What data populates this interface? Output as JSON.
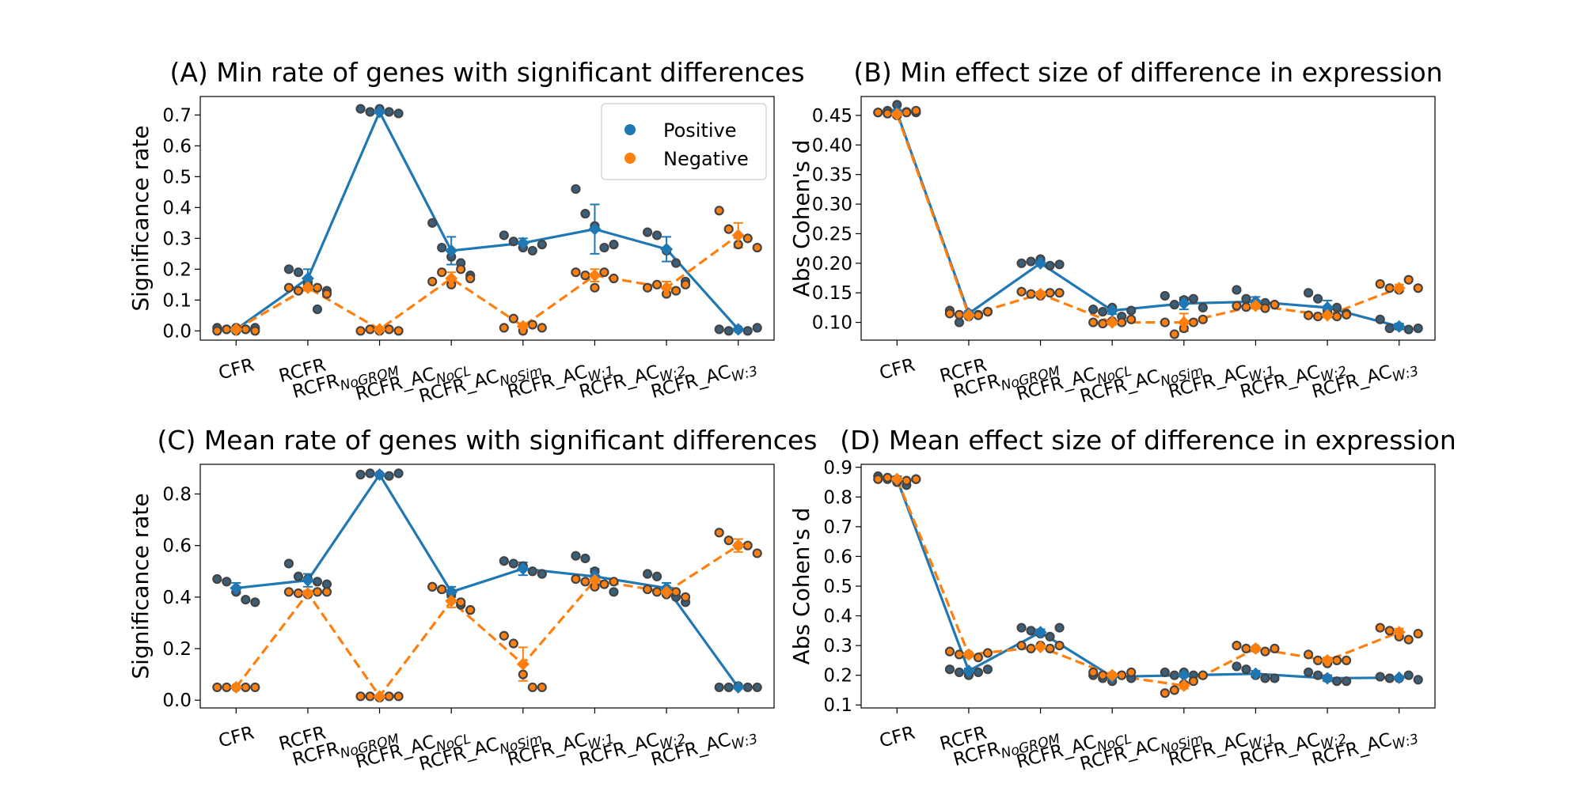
{
  "colors": {
    "positive": "#1f77b4",
    "negative": "#ff7f0e",
    "dot_fill": "#3a5f7a",
    "dot_edge": "#444444"
  },
  "chart_data": [
    {
      "type": "line",
      "title": "(A) Min rate of genes with significant differences",
      "ylabel": "Significance rate",
      "ylim": [
        -0.03,
        0.76
      ],
      "yticks": [
        0.0,
        0.1,
        0.2,
        0.3,
        0.4,
        0.5,
        0.6,
        0.7
      ],
      "tick_decimals": 1,
      "legend": {
        "placement": "top-right",
        "entries": [
          "Positive",
          "Negative"
        ]
      },
      "categories": [
        {
          "base": "CFR",
          "sub": ""
        },
        {
          "base": "RCFR",
          "sub": ""
        },
        {
          "base": "RCFR",
          "sub": "NoGROM"
        },
        {
          "base": "RCFR_AC",
          "sub": "NoCL"
        },
        {
          "base": "RCFR_AC",
          "sub": "NoSim"
        },
        {
          "base": "RCFR_AC",
          "sub": "W:1"
        },
        {
          "base": "RCFR_AC",
          "sub": "W:2"
        },
        {
          "base": "RCFR_AC",
          "sub": "W:3"
        }
      ],
      "series": [
        {
          "name": "Positive",
          "values": [
            0.005,
            0.17,
            0.71,
            0.26,
            0.285,
            0.33,
            0.265,
            0.005
          ],
          "err": [
            0.003,
            0.03,
            0.005,
            0.045,
            0.015,
            0.08,
            0.04,
            0.003
          ],
          "points": [
            [
              0.01,
              0.005,
              0.0,
              0.005,
              0.01
            ],
            [
              0.2,
              0.19,
              0.16,
              0.07,
              0.13
            ],
            [
              0.72,
              0.71,
              0.72,
              0.71,
              0.705
            ],
            [
              0.35,
              0.27,
              0.24,
              0.22,
              0.18
            ],
            [
              0.31,
              0.29,
              0.27,
              0.26,
              0.28
            ],
            [
              0.46,
              0.38,
              0.34,
              0.27,
              0.28
            ],
            [
              0.32,
              0.31,
              0.26,
              0.22,
              0.16
            ],
            [
              0.005,
              0.0,
              0.005,
              0.0,
              0.01
            ]
          ]
        },
        {
          "name": "Negative",
          "values": [
            0.005,
            0.14,
            0.005,
            0.17,
            0.015,
            0.18,
            0.14,
            0.31
          ],
          "err": [
            0.003,
            0.01,
            0.003,
            0.02,
            0.01,
            0.02,
            0.02,
            0.04
          ],
          "points": [
            [
              0.0,
              0.005,
              0.01,
              0.005,
              0.0
            ],
            [
              0.14,
              0.13,
              0.15,
              0.14,
              0.12
            ],
            [
              0.0,
              0.005,
              0.0,
              0.005,
              0.0
            ],
            [
              0.16,
              0.19,
              0.15,
              0.2,
              0.17
            ],
            [
              0.01,
              0.04,
              0.0,
              0.02,
              0.01
            ],
            [
              0.19,
              0.18,
              0.14,
              0.19,
              0.17
            ],
            [
              0.14,
              0.15,
              0.12,
              0.13,
              0.15
            ],
            [
              0.39,
              0.33,
              0.28,
              0.3,
              0.27
            ]
          ]
        }
      ]
    },
    {
      "type": "line",
      "title": "(B) Min effect size of difference in expression",
      "ylabel": "Abs Cohen's d",
      "ylim": [
        0.07,
        0.482
      ],
      "yticks": [
        0.1,
        0.15,
        0.2,
        0.25,
        0.3,
        0.35,
        0.4,
        0.45
      ],
      "tick_decimals": 2,
      "categories": [
        {
          "base": "CFR",
          "sub": ""
        },
        {
          "base": "RCFR",
          "sub": ""
        },
        {
          "base": "RCFR",
          "sub": "NoGROM"
        },
        {
          "base": "RCFR_AC",
          "sub": "NoCL"
        },
        {
          "base": "RCFR_AC",
          "sub": "NoSim"
        },
        {
          "base": "RCFR_AC",
          "sub": "W:1"
        },
        {
          "base": "RCFR_AC",
          "sub": "W:2"
        },
        {
          "base": "RCFR_AC",
          "sub": "W:3"
        }
      ],
      "series": [
        {
          "name": "Positive",
          "values": [
            0.455,
            0.115,
            0.2,
            0.12,
            0.132,
            0.135,
            0.125,
            0.093
          ],
          "err": [
            0.005,
            0.004,
            0.004,
            0.006,
            0.01,
            0.008,
            0.012,
            0.005
          ],
          "points": [
            [
              0.455,
              0.458,
              0.468,
              0.456,
              0.455
            ],
            [
              0.12,
              0.1,
              0.115,
              0.113,
              0.118
            ],
            [
              0.2,
              0.203,
              0.207,
              0.196,
              0.198
            ],
            [
              0.122,
              0.118,
              0.125,
              0.11,
              0.12
            ],
            [
              0.145,
              0.13,
              0.138,
              0.14,
              0.125
            ],
            [
              0.155,
              0.14,
              0.13,
              0.133,
              0.13
            ],
            [
              0.15,
              0.14,
              0.12,
              0.125,
              0.115
            ],
            [
              0.105,
              0.09,
              0.093,
              0.088,
              0.09
            ]
          ]
        },
        {
          "name": "Negative",
          "values": [
            0.452,
            0.112,
            0.148,
            0.1,
            0.1,
            0.128,
            0.112,
            0.158
          ],
          "err": [
            0.005,
            0.003,
            0.004,
            0.004,
            0.015,
            0.005,
            0.004,
            0.006
          ],
          "points": [
            [
              0.455,
              0.453,
              0.45,
              0.455,
              0.458
            ],
            [
              0.115,
              0.113,
              0.11,
              0.112,
              0.118
            ],
            [
              0.152,
              0.148,
              0.145,
              0.15,
              0.15
            ],
            [
              0.1,
              0.098,
              0.102,
              0.1,
              0.105
            ],
            [
              0.1,
              0.08,
              0.09,
              0.1,
              0.105
            ],
            [
              0.128,
              0.126,
              0.13,
              0.124,
              0.13
            ],
            [
              0.112,
              0.11,
              0.114,
              0.11,
              0.113
            ],
            [
              0.165,
              0.158,
              0.155,
              0.172,
              0.158
            ]
          ]
        }
      ]
    },
    {
      "type": "line",
      "title": "(C) Mean rate of genes with significant differences",
      "ylabel": "Significance rate",
      "ylim": [
        -0.03,
        0.915
      ],
      "yticks": [
        0.0,
        0.2,
        0.4,
        0.6,
        0.8
      ],
      "tick_decimals": 1,
      "categories": [
        {
          "base": "CFR",
          "sub": ""
        },
        {
          "base": "RCFR",
          "sub": ""
        },
        {
          "base": "RCFR",
          "sub": "NoGROM"
        },
        {
          "base": "RCFR_AC",
          "sub": "NoCL"
        },
        {
          "base": "RCFR_AC",
          "sub": "NoSim"
        },
        {
          "base": "RCFR_AC",
          "sub": "W:1"
        },
        {
          "base": "RCFR_AC",
          "sub": "W:2"
        },
        {
          "base": "RCFR_AC",
          "sub": "W:3"
        }
      ],
      "series": [
        {
          "name": "Positive",
          "values": [
            0.435,
            0.465,
            0.875,
            0.42,
            0.51,
            0.48,
            0.435,
            0.05
          ],
          "err": [
            0.02,
            0.025,
            0.005,
            0.02,
            0.025,
            0.03,
            0.02,
            0.004
          ],
          "points": [
            [
              0.47,
              0.46,
              0.42,
              0.39,
              0.38
            ],
            [
              0.53,
              0.48,
              0.47,
              0.46,
              0.45
            ],
            [
              0.875,
              0.88,
              0.875,
              0.87,
              0.88
            ],
            [
              0.44,
              0.43,
              0.41,
              0.37,
              0.35
            ],
            [
              0.54,
              0.53,
              0.52,
              0.5,
              0.49
            ],
            [
              0.56,
              0.55,
              0.5,
              0.45,
              0.42
            ],
            [
              0.49,
              0.48,
              0.43,
              0.4,
              0.38
            ],
            [
              0.05,
              0.05,
              0.055,
              0.05,
              0.05
            ]
          ]
        },
        {
          "name": "Negative",
          "values": [
            0.05,
            0.415,
            0.015,
            0.385,
            0.14,
            0.465,
            0.42,
            0.6
          ],
          "err": [
            0.003,
            0.01,
            0.004,
            0.025,
            0.065,
            0.02,
            0.015,
            0.025
          ],
          "points": [
            [
              0.05,
              0.05,
              0.05,
              0.05,
              0.05
            ],
            [
              0.42,
              0.415,
              0.41,
              0.42,
              0.42
            ],
            [
              0.015,
              0.015,
              0.01,
              0.015,
              0.015
            ],
            [
              0.44,
              0.43,
              0.42,
              0.38,
              0.35
            ],
            [
              0.25,
              0.22,
              0.1,
              0.05,
              0.05
            ],
            [
              0.47,
              0.46,
              0.44,
              0.45,
              0.46
            ],
            [
              0.43,
              0.42,
              0.41,
              0.42,
              0.4
            ],
            [
              0.65,
              0.62,
              0.6,
              0.6,
              0.57
            ]
          ]
        }
      ]
    },
    {
      "type": "line",
      "title": "(D) Mean effect size of difference in expression",
      "ylabel": "Abs Cohen's d",
      "ylim": [
        0.09,
        0.91
      ],
      "yticks": [
        0.1,
        0.2,
        0.3,
        0.4,
        0.5,
        0.6,
        0.7,
        0.8,
        0.9
      ],
      "tick_decimals": 1,
      "categories": [
        {
          "base": "CFR",
          "sub": ""
        },
        {
          "base": "RCFR",
          "sub": ""
        },
        {
          "base": "RCFR",
          "sub": "NoGROM"
        },
        {
          "base": "RCFR_AC",
          "sub": "NoCL"
        },
        {
          "base": "RCFR_AC",
          "sub": "NoSim"
        },
        {
          "base": "RCFR_AC",
          "sub": "W:1"
        },
        {
          "base": "RCFR_AC",
          "sub": "W:2"
        },
        {
          "base": "RCFR_AC",
          "sub": "W:3"
        }
      ],
      "series": [
        {
          "name": "Positive",
          "values": [
            0.86,
            0.215,
            0.345,
            0.195,
            0.2,
            0.205,
            0.19,
            0.192
          ],
          "err": [
            0.01,
            0.008,
            0.01,
            0.005,
            0.005,
            0.01,
            0.01,
            0.004
          ],
          "points": [
            [
              0.87,
              0.86,
              0.85,
              0.84,
              0.86
            ],
            [
              0.22,
              0.21,
              0.2,
              0.21,
              0.22
            ],
            [
              0.36,
              0.35,
              0.34,
              0.33,
              0.36
            ],
            [
              0.2,
              0.19,
              0.18,
              0.2,
              0.19
            ],
            [
              0.21,
              0.2,
              0.21,
              0.2,
              0.2
            ],
            [
              0.23,
              0.22,
              0.2,
              0.19,
              0.19
            ],
            [
              0.21,
              0.2,
              0.19,
              0.18,
              0.18
            ],
            [
              0.195,
              0.19,
              0.19,
              0.2,
              0.185
            ]
          ]
        },
        {
          "name": "Negative",
          "values": [
            0.86,
            0.27,
            0.295,
            0.2,
            0.165,
            0.29,
            0.25,
            0.345
          ],
          "err": [
            0.004,
            0.005,
            0.005,
            0.005,
            0.01,
            0.005,
            0.01,
            0.012
          ],
          "points": [
            [
              0.86,
              0.865,
              0.86,
              0.855,
              0.86
            ],
            [
              0.28,
              0.27,
              0.27,
              0.26,
              0.275
            ],
            [
              0.3,
              0.29,
              0.3,
              0.29,
              0.3
            ],
            [
              0.21,
              0.2,
              0.2,
              0.2,
              0.21
            ],
            [
              0.14,
              0.15,
              0.17,
              0.18,
              0.2
            ],
            [
              0.3,
              0.29,
              0.29,
              0.28,
              0.29
            ],
            [
              0.27,
              0.25,
              0.24,
              0.25,
              0.25
            ],
            [
              0.36,
              0.35,
              0.33,
              0.32,
              0.34
            ]
          ]
        }
      ]
    }
  ]
}
